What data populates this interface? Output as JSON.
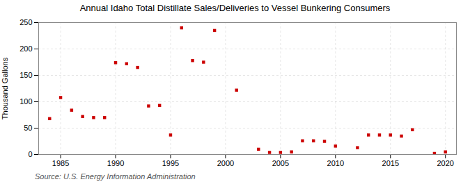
{
  "chart_data": {
    "type": "scatter",
    "title": "Annual Idaho Total Distillate Sales/Deliveries to Vessel Bunkering Consumers",
    "ylabel": "Thousand Gallons",
    "source": "Source: U.S. Energy Information Administration",
    "x": [
      1984,
      1985,
      1986,
      1987,
      1988,
      1989,
      1990,
      1991,
      1992,
      1993,
      1994,
      1995,
      1996,
      1997,
      1998,
      1999,
      2001,
      2003,
      2004,
      2005,
      2006,
      2007,
      2008,
      2009,
      2010,
      2012,
      2013,
      2014,
      2015,
      2016,
      2017,
      2019,
      2020
    ],
    "values": [
      68,
      108,
      84,
      72,
      70,
      70,
      174,
      172,
      165,
      92,
      93,
      37,
      240,
      178,
      175,
      235,
      122,
      10,
      4,
      4,
      5,
      26,
      26,
      25,
      16,
      13,
      37,
      37,
      37,
      35,
      47,
      2,
      5
    ],
    "color": "#cc0000",
    "marker": "square",
    "xlim": [
      1983,
      2021
    ],
    "xticks": [
      1985,
      1990,
      1995,
      2000,
      2005,
      2010,
      2015,
      2020
    ],
    "ylim": [
      0,
      250
    ],
    "yticks": [
      0,
      50,
      100,
      150,
      200,
      250
    ],
    "grid": true
  }
}
